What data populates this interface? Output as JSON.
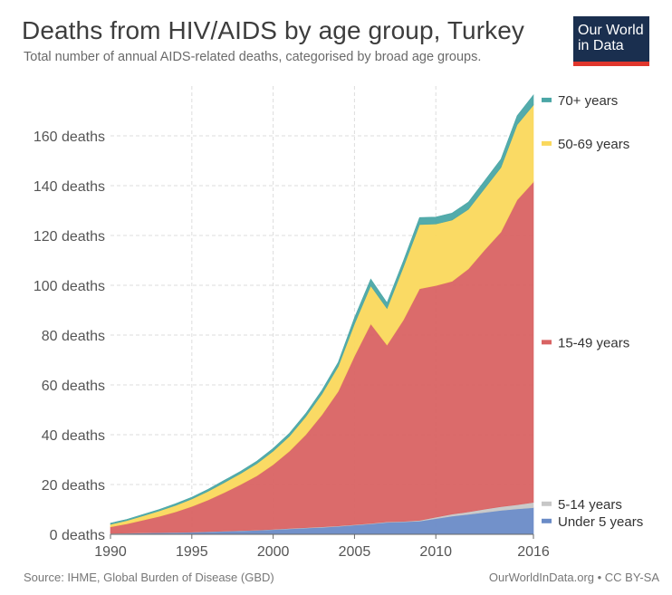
{
  "header": {
    "title": "Deaths from HIV/AIDS by age group, Turkey",
    "subtitle": "Total number of annual AIDS-related deaths, categorised by broad age groups."
  },
  "logo": {
    "line1": "Our World",
    "line2": "in Data"
  },
  "footer": {
    "source": "Source: IHME, Global Burden of Disease (GBD)",
    "credit": "OurWorldInData.org • CC BY-SA"
  },
  "chart_data": {
    "type": "area",
    "stacked": true,
    "x": [
      1990,
      1991,
      1992,
      1993,
      1994,
      1995,
      1996,
      1997,
      1998,
      1999,
      2000,
      2001,
      2002,
      2003,
      2004,
      2005,
      2006,
      2007,
      2008,
      2009,
      2010,
      2011,
      2012,
      2013,
      2014,
      2015,
      2016
    ],
    "xlim": [
      1990,
      2016
    ],
    "ylim": [
      0,
      180
    ],
    "xticks": [
      {
        "value": 1990,
        "label": "1990"
      },
      {
        "value": 1995,
        "label": "1995"
      },
      {
        "value": 2000,
        "label": "2000"
      },
      {
        "value": 2005,
        "label": "2005"
      },
      {
        "value": 2010,
        "label": "2010"
      },
      {
        "value": 2016,
        "label": "2016"
      }
    ],
    "yticks": [
      {
        "value": 0,
        "label": "0 deaths"
      },
      {
        "value": 20,
        "label": "20 deaths"
      },
      {
        "value": 40,
        "label": "40 deaths"
      },
      {
        "value": 60,
        "label": "60 deaths"
      },
      {
        "value": 80,
        "label": "80 deaths"
      },
      {
        "value": 100,
        "label": "100 deaths"
      },
      {
        "value": 120,
        "label": "120 deaths"
      },
      {
        "value": 140,
        "label": "140 deaths"
      },
      {
        "value": 160,
        "label": "160 deaths"
      }
    ],
    "grid": true,
    "legend_placement": "right",
    "series": [
      {
        "name": "Under 5 years",
        "color": "#6a8bc7",
        "values": [
          0.3,
          0.4,
          0.5,
          0.6,
          0.7,
          0.8,
          1.0,
          1.2,
          1.4,
          1.6,
          1.9,
          2.2,
          2.5,
          2.8,
          3.2,
          3.7,
          4.2,
          4.8,
          5.0,
          5.3,
          6.3,
          7.3,
          8.0,
          8.8,
          9.6,
          10.2,
          10.7
        ]
      },
      {
        "name": "5-14 years",
        "color": "#c7c7c7",
        "values": [
          0.1,
          0.1,
          0.1,
          0.1,
          0.1,
          0.1,
          0.1,
          0.1,
          0.1,
          0.1,
          0.1,
          0.2,
          0.2,
          0.2,
          0.2,
          0.2,
          0.2,
          0.2,
          0.2,
          0.3,
          0.6,
          0.8,
          1.0,
          1.3,
          1.5,
          1.7,
          2.1
        ]
      },
      {
        "name": "15-49 years",
        "color": "#d96363",
        "values": [
          2.6,
          3.7,
          5.1,
          6.5,
          8.2,
          10.3,
          12.7,
          15.5,
          18.5,
          21.8,
          26.0,
          31.0,
          37.3,
          45.0,
          54.0,
          67.7,
          80.1,
          71.0,
          80.8,
          93.0,
          93.0,
          93.5,
          97.6,
          104.1,
          110.3,
          122.4,
          128.7
        ]
      },
      {
        "name": "50-69 years",
        "color": "#fad85c",
        "values": [
          1.0,
          1.3,
          1.7,
          2.2,
          2.6,
          3.0,
          3.5,
          4.0,
          4.4,
          4.9,
          5.4,
          6.0,
          7.2,
          8.4,
          10.0,
          12.9,
          15.3,
          14.7,
          21.2,
          25.8,
          24.7,
          24.6,
          23.9,
          24.7,
          25.9,
          30.2,
          30.9
        ]
      },
      {
        "name": "70+ years",
        "color": "#4aa6a6",
        "values": [
          0.5,
          0.5,
          0.6,
          0.6,
          0.7,
          0.7,
          0.8,
          0.9,
          0.9,
          1.0,
          1.1,
          1.2,
          1.3,
          1.5,
          1.7,
          2.5,
          2.7,
          2.3,
          2.5,
          2.8,
          2.8,
          2.8,
          2.9,
          3.1,
          3.3,
          3.6,
          4.0
        ]
      }
    ]
  }
}
